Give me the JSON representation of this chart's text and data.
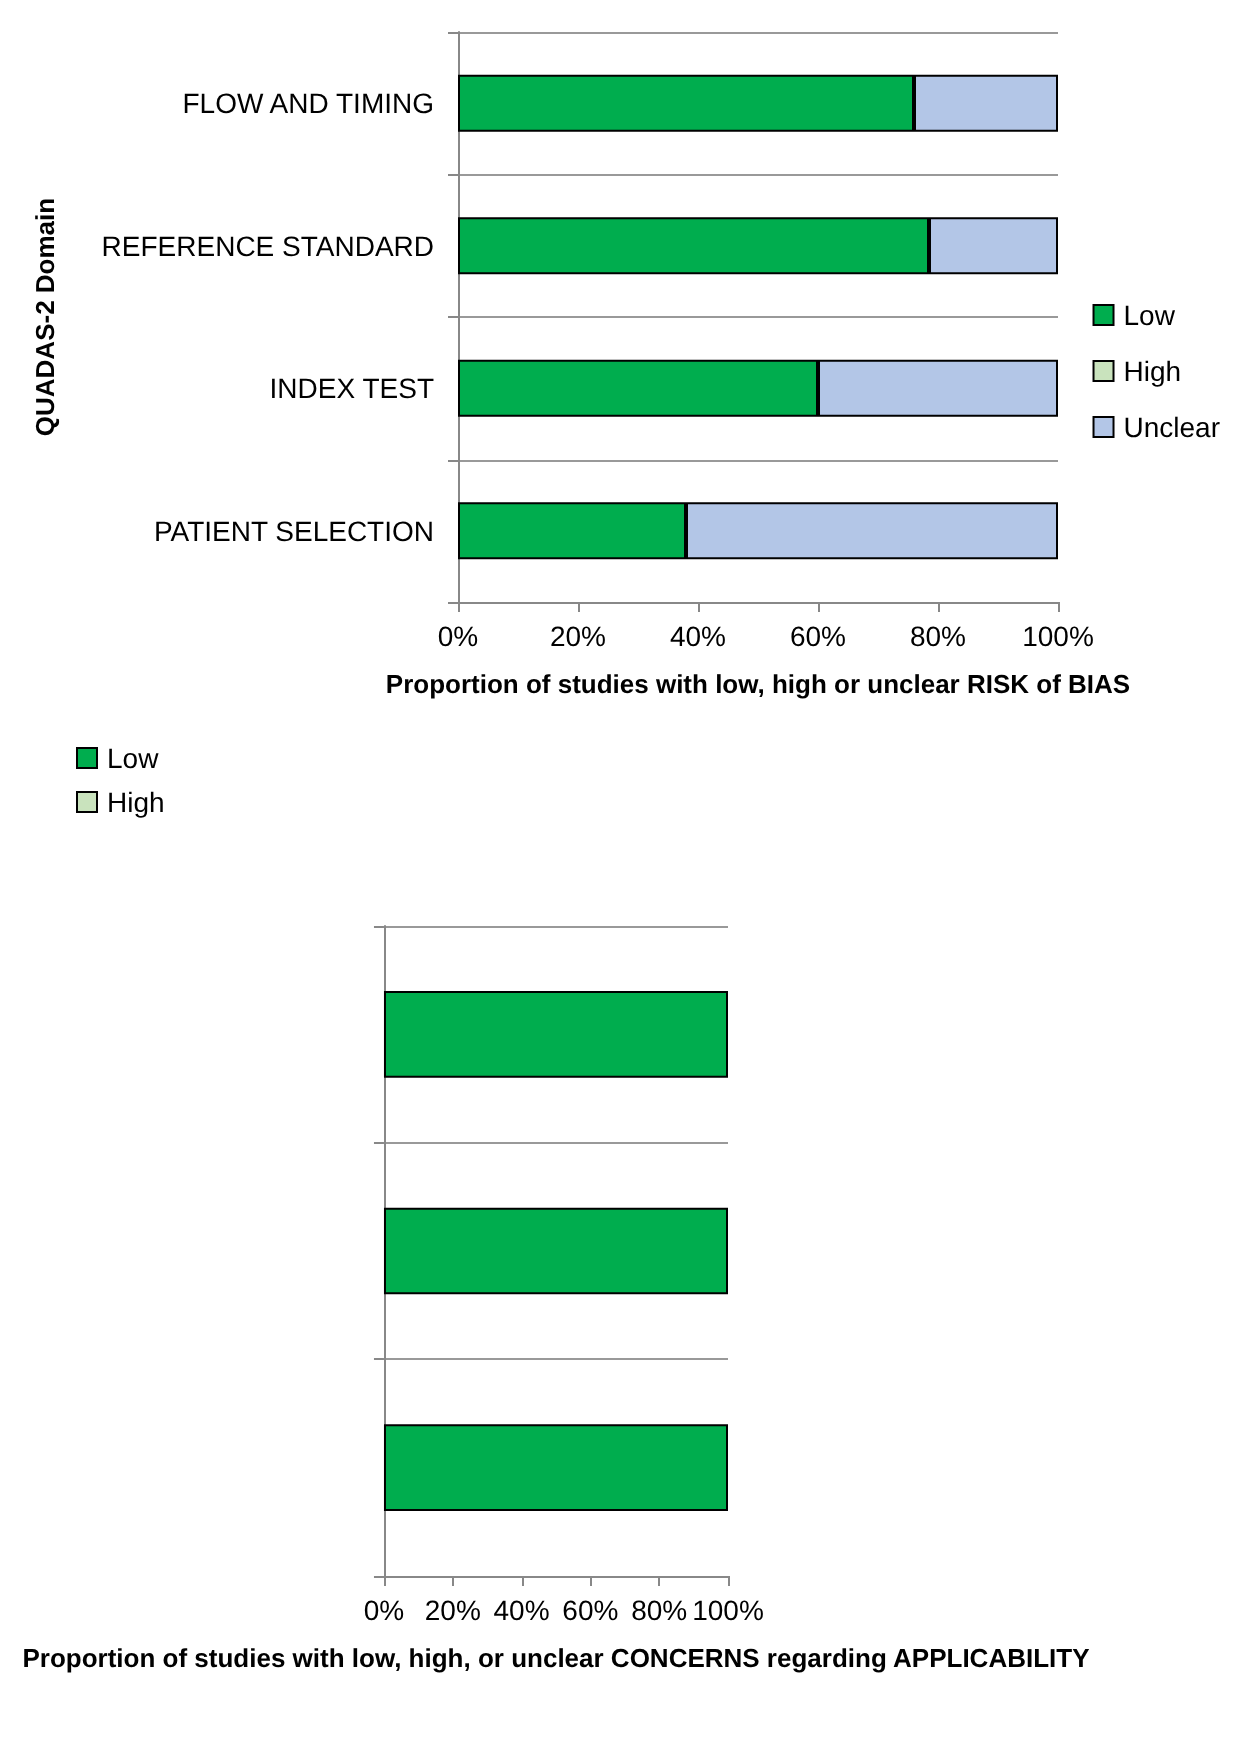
{
  "chart_data": [
    {
      "type": "bar",
      "orientation": "horizontal",
      "stacked": true,
      "ylabel": "QUADAS-2 Domain",
      "xlabel": "Proportion of studies with low, high or unclear RISK of BIAS",
      "categories": [
        "FLOW AND TIMING",
        "REFERENCE STANDARD",
        "INDEX TEST",
        "PATIENT SELECTION"
      ],
      "series": [
        {
          "name": "Low",
          "color": "#00ad4e",
          "values": [
            76,
            78.5,
            60,
            38
          ]
        },
        {
          "name": "High",
          "color": "#c9e3bd",
          "values": [
            0,
            0,
            0,
            0
          ]
        },
        {
          "name": "Unclear",
          "color": "#b3c6e7",
          "values": [
            24,
            21.5,
            40,
            62
          ]
        }
      ],
      "xlim": [
        0,
        100
      ],
      "xticks": [
        {
          "value": 0,
          "label": "0%"
        },
        {
          "value": 20,
          "label": "20%"
        },
        {
          "value": 40,
          "label": "40%"
        },
        {
          "value": 60,
          "label": "60%"
        },
        {
          "value": 80,
          "label": "80%"
        },
        {
          "value": 100,
          "label": "100%"
        }
      ],
      "grid": "y",
      "legend": "right"
    },
    {
      "type": "bar",
      "orientation": "horizontal",
      "stacked": true,
      "xlabel": "Proportion of studies with low, high, or unclear CONCERNS regarding APPLICABILITY",
      "categories": [
        null,
        null,
        null
      ],
      "series": [
        {
          "name": "Low",
          "color": "#00ad4e",
          "values": [
            100,
            100,
            100
          ]
        },
        {
          "name": "High",
          "color": "#c9e3bd",
          "values": [
            0,
            0,
            0
          ]
        }
      ],
      "xlim": [
        0,
        100
      ],
      "xticks": [
        {
          "value": 0,
          "label": "0%"
        },
        {
          "value": 20,
          "label": "20%"
        },
        {
          "value": 40,
          "label": "40%"
        },
        {
          "value": 60,
          "label": "60%"
        },
        {
          "value": 80,
          "label": "80%"
        },
        {
          "value": 100,
          "label": "100%"
        }
      ],
      "grid": "y",
      "legend": "top left"
    }
  ]
}
